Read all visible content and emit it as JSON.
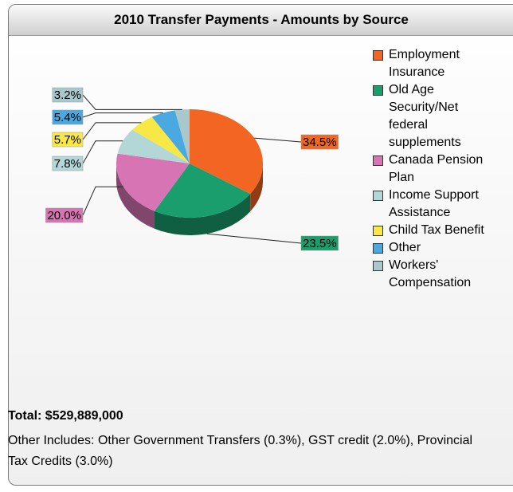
{
  "chart_data": {
    "type": "pie",
    "title": "2010 Transfer Payments - Amounts by Source",
    "categories": [
      "Employment Insurance",
      "Old Age Security/Net federal supplements",
      "Canada Pension Plan",
      "Income Support Assistance",
      "Child Tax Benefit",
      "Other",
      "Workers' Compensation"
    ],
    "values": [
      34.5,
      23.5,
      20.0,
      7.8,
      5.7,
      5.4,
      3.2
    ],
    "value_labels": [
      "34.5%",
      "23.5%",
      "20.0%",
      "7.8%",
      "5.7%",
      "5.4%",
      "3.2%"
    ],
    "colors": [
      "#f26522",
      "#1a9e6e",
      "#d674b4",
      "#b3d6d6",
      "#f7e846",
      "#4aa9e0",
      "#a9c8cc"
    ],
    "legend": "right",
    "annotations": [
      "Total: $529,889,000",
      "Other Includes: Other Government Transfers (0.3%), GST credit (2.0%), Provincial Tax Credits (3.0%)"
    ]
  }
}
